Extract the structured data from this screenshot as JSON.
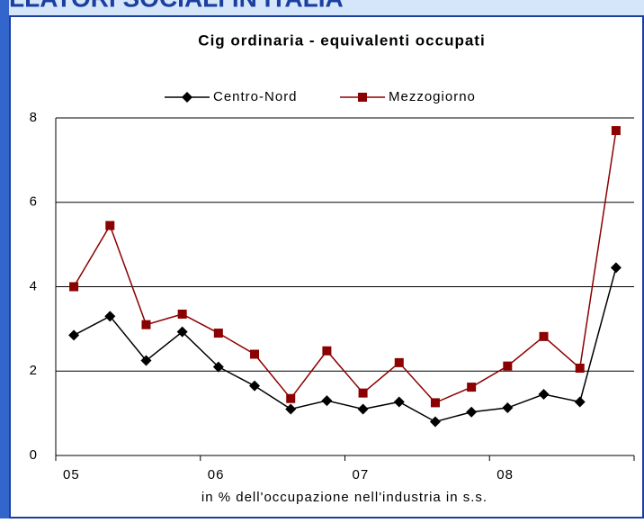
{
  "header": "LLATORI SOCIALI IN ITALIA",
  "chart_data": {
    "type": "line",
    "title": "Cig ordinaria - equivalenti occupati",
    "xlabel": "in % dell'occupazione nell'industria in s.s.",
    "categories": [
      "05",
      null,
      null,
      null,
      "06",
      null,
      null,
      null,
      "07",
      null,
      null,
      null,
      "08",
      null,
      null,
      null
    ],
    "series": [
      {
        "name": "Centro-Nord",
        "color": "#000000",
        "marker": "diamond",
        "values": [
          2.85,
          3.3,
          2.25,
          2.93,
          2.1,
          1.65,
          1.1,
          1.3,
          1.1,
          1.27,
          0.8,
          1.03,
          1.13,
          1.45,
          1.27,
          4.45
        ]
      },
      {
        "name": "Mezzogiorno",
        "color": "#8b0000",
        "marker": "square",
        "values": [
          4.0,
          5.45,
          3.1,
          3.35,
          2.9,
          2.4,
          1.35,
          2.48,
          1.48,
          2.2,
          1.25,
          1.62,
          2.12,
          2.82,
          2.07,
          7.7
        ]
      }
    ],
    "ylim": [
      0,
      8
    ],
    "yticks": [
      0,
      2,
      4,
      6,
      8
    ],
    "grid": true,
    "legend": "top"
  }
}
